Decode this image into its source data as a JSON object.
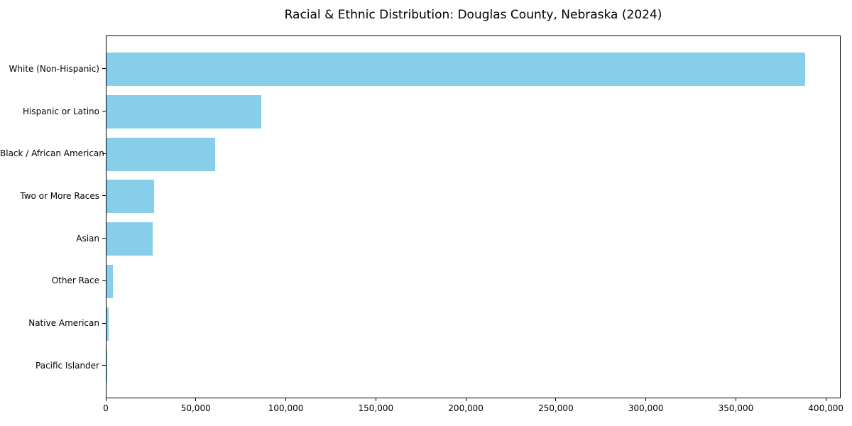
{
  "title": "Racial & Ethnic Distribution: Douglas County, Nebraska (2024)",
  "colors": {
    "bar": "#87ceeb",
    "axis": "#000000",
    "text": "#000000",
    "background": "#ffffff"
  },
  "chart_data": {
    "type": "bar",
    "orientation": "horizontal",
    "title": "Racial & Ethnic Distribution: Douglas County, Nebraska (2024)",
    "xlabel": "",
    "ylabel": "",
    "categories": [
      "White (Non-Hispanic)",
      "Hispanic or Latino",
      "Black / African American",
      "Two or More Races",
      "Asian",
      "Other Race",
      "Native American",
      "Pacific Islander"
    ],
    "values": [
      388000,
      86000,
      60500,
      26300,
      25700,
      3700,
      1200,
      300
    ],
    "xlim": [
      0,
      407400
    ],
    "x_ticks": [
      0,
      50000,
      100000,
      150000,
      200000,
      250000,
      300000,
      350000,
      400000
    ],
    "x_tick_labels": [
      "0",
      "50,000",
      "100,000",
      "150,000",
      "200,000",
      "250,000",
      "300,000",
      "350,000",
      "400,000"
    ],
    "bar_color": "#87ceeb",
    "grid": false,
    "legend": null
  }
}
